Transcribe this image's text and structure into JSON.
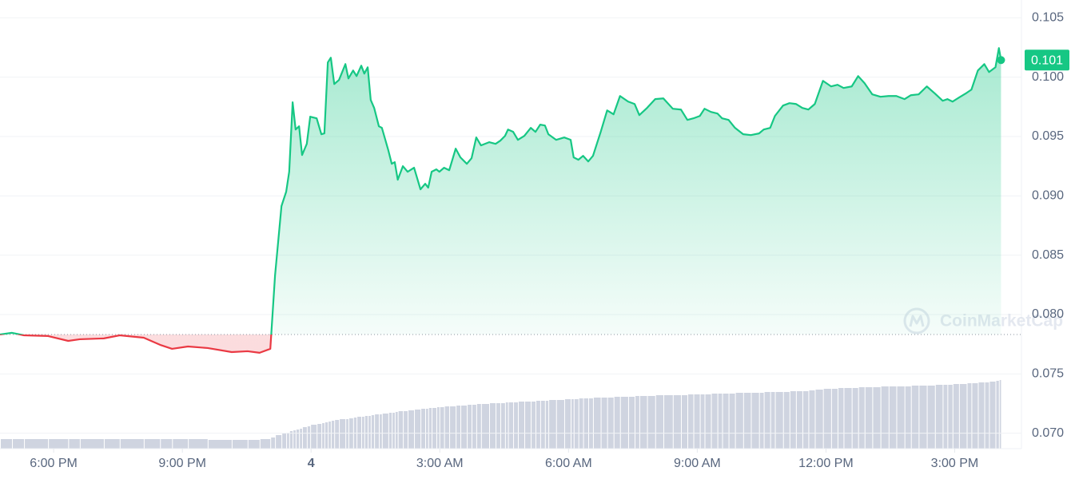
{
  "chart_data": {
    "type": "line",
    "x": [
      16.75,
      17.03,
      17.31,
      17.87,
      18.34,
      18.61,
      19.17,
      19.54,
      20.1,
      20.48,
      20.76,
      21.13,
      21.59,
      22.15,
      22.52,
      22.8,
      23.05,
      23.16,
      23.31,
      23.42,
      23.49,
      23.57,
      23.64,
      23.72,
      23.79,
      23.9,
      23.98,
      24.13,
      24.24,
      24.31,
      24.39,
      24.46,
      24.54,
      24.65,
      24.8,
      24.87,
      24.98,
      25.06,
      25.17,
      25.24,
      25.32,
      25.39,
      25.47,
      25.58,
      25.65,
      25.8,
      25.88,
      25.95,
      26.02,
      26.14,
      26.25,
      26.4,
      26.55,
      26.66,
      26.73,
      26.81,
      26.92,
      26.99,
      27.1,
      27.22,
      27.37,
      27.48,
      27.63,
      27.74,
      27.85,
      27.96,
      28.15,
      28.3,
      28.41,
      28.52,
      28.59,
      28.71,
      28.82,
      28.97,
      29.12,
      29.23,
      29.34,
      29.45,
      29.53,
      29.71,
      29.9,
      30.05,
      30.12,
      30.23,
      30.34,
      30.46,
      30.57,
      30.75,
      30.9,
      31.05,
      31.2,
      31.39,
      31.54,
      31.65,
      31.83,
      32.02,
      32.21,
      32.43,
      32.62,
      32.77,
      32.91,
      33.06,
      33.17,
      33.32,
      33.47,
      33.58,
      33.73,
      33.88,
      34.07,
      34.25,
      34.44,
      34.55,
      34.7,
      34.81,
      35.0,
      35.15,
      35.3,
      35.45,
      35.59,
      35.74,
      35.93,
      36.12,
      36.27,
      36.41,
      36.6,
      36.75,
      36.9,
      37.08,
      37.27,
      37.46,
      37.64,
      37.83,
      37.98,
      38.16,
      38.35,
      38.54,
      38.72,
      38.83,
      38.95,
      39.1,
      39.28,
      39.39,
      39.54,
      39.69,
      39.8,
      39.95,
      40.03,
      40.08
    ],
    "values": [
      0.07832,
      0.07846,
      0.07825,
      0.07819,
      0.07778,
      0.07792,
      0.07799,
      0.07825,
      0.07805,
      0.07745,
      0.07711,
      0.07731,
      0.07718,
      0.07684,
      0.07691,
      0.07678,
      0.07711,
      0.08329,
      0.08914,
      0.09035,
      0.09203,
      0.09788,
      0.09559,
      0.09586,
      0.09344,
      0.09438,
      0.09667,
      0.09653,
      0.09519,
      0.09526,
      0.10124,
      0.10164,
      0.09942,
      0.09976,
      0.1011,
      0.09989,
      0.10056,
      0.10009,
      0.10097,
      0.1003,
      0.10083,
      0.09808,
      0.09741,
      0.09586,
      0.09573,
      0.09384,
      0.0927,
      0.09284,
      0.09136,
      0.0925,
      0.09203,
      0.09237,
      0.09055,
      0.09102,
      0.09069,
      0.09203,
      0.09223,
      0.09203,
      0.09237,
      0.09216,
      0.09398,
      0.09324,
      0.0927,
      0.09317,
      0.09492,
      0.09425,
      0.09452,
      0.09438,
      0.09465,
      0.09505,
      0.09559,
      0.09539,
      0.09472,
      0.09505,
      0.09573,
      0.09539,
      0.096,
      0.09593,
      0.09519,
      0.09472,
      0.09492,
      0.09472,
      0.09324,
      0.09304,
      0.09337,
      0.0929,
      0.09337,
      0.09539,
      0.0972,
      0.09687,
      0.09841,
      0.09794,
      0.09774,
      0.0968,
      0.09741,
      0.09815,
      0.09821,
      0.09734,
      0.09727,
      0.0964,
      0.09653,
      0.09673,
      0.09734,
      0.09707,
      0.09694,
      0.09653,
      0.0964,
      0.09573,
      0.09519,
      0.09512,
      0.09526,
      0.09559,
      0.09573,
      0.09673,
      0.09761,
      0.09781,
      0.09774,
      0.09741,
      0.09727,
      0.09774,
      0.09969,
      0.09922,
      0.09936,
      0.09909,
      0.09922,
      0.10009,
      0.09949,
      0.09855,
      0.09835,
      0.09841,
      0.09841,
      0.09815,
      0.09848,
      0.09855,
      0.09922,
      0.09862,
      0.09801,
      0.09815,
      0.09794,
      0.09828,
      0.09868,
      0.09895,
      0.10056,
      0.1011,
      0.10043,
      0.10083,
      0.10245,
      0.10144
    ],
    "volume": [
      12,
      12,
      12,
      12,
      12,
      12,
      12,
      12,
      12,
      12,
      12,
      12,
      12,
      11,
      11,
      11,
      12,
      14,
      17,
      19,
      20,
      22,
      23,
      24,
      25,
      27,
      28,
      30,
      31,
      32,
      33,
      34,
      35,
      36,
      37,
      37,
      38,
      39,
      40,
      40,
      41,
      41,
      42,
      43,
      43,
      44,
      45,
      45,
      46,
      47,
      47,
      48,
      49,
      50,
      50,
      51,
      51,
      52,
      52,
      53,
      53,
      54,
      54,
      55,
      55,
      56,
      56,
      57,
      57,
      57,
      58,
      58,
      58,
      59,
      59,
      59,
      60,
      60,
      60,
      61,
      61,
      62,
      62,
      62,
      63,
      63,
      63,
      64,
      64,
      64,
      65,
      65,
      65,
      66,
      66,
      66,
      67,
      67,
      67,
      67,
      68,
      68,
      68,
      68,
      69,
      69,
      69,
      69,
      70,
      70,
      70,
      70,
      71,
      71,
      71,
      71,
      72,
      72,
      72,
      73,
      74,
      75,
      75,
      76,
      76,
      76,
      77,
      77,
      77,
      78,
      78,
      78,
      78,
      79,
      79,
      79,
      80,
      80,
      80,
      81,
      81,
      82,
      82,
      83,
      83,
      84,
      85,
      86
    ],
    "baseline": 0.07832,
    "current_price_label": "0.101",
    "watermark": "CoinMarketCap",
    "up_color": "#16c784",
    "down_color": "#ea3943",
    "volume_color": "#cfd4e0",
    "grid": true,
    "xlim": [
      16.75,
      40.5
    ],
    "ylim": [
      0.0687,
      0.1065
    ],
    "xticks": [
      {
        "value": 18,
        "label": "6:00 PM"
      },
      {
        "value": 21,
        "label": "9:00 PM"
      },
      {
        "value": 24,
        "label": "4"
      },
      {
        "value": 27,
        "label": "3:00 AM"
      },
      {
        "value": 30,
        "label": "6:00 AM"
      },
      {
        "value": 33,
        "label": "9:00 AM"
      },
      {
        "value": 36,
        "label": "12:00 PM"
      },
      {
        "value": 39,
        "label": "3:00 PM"
      }
    ],
    "yticks": [
      {
        "value": 0.07,
        "label": "0.070"
      },
      0.075,
      {
        "value": 0.08,
        "label": "0.080"
      },
      0.085,
      {
        "value": 0.09,
        "label": "0.090"
      },
      0.095,
      {
        "value": 0.1,
        "label": "0.100"
      },
      0.105
    ]
  }
}
